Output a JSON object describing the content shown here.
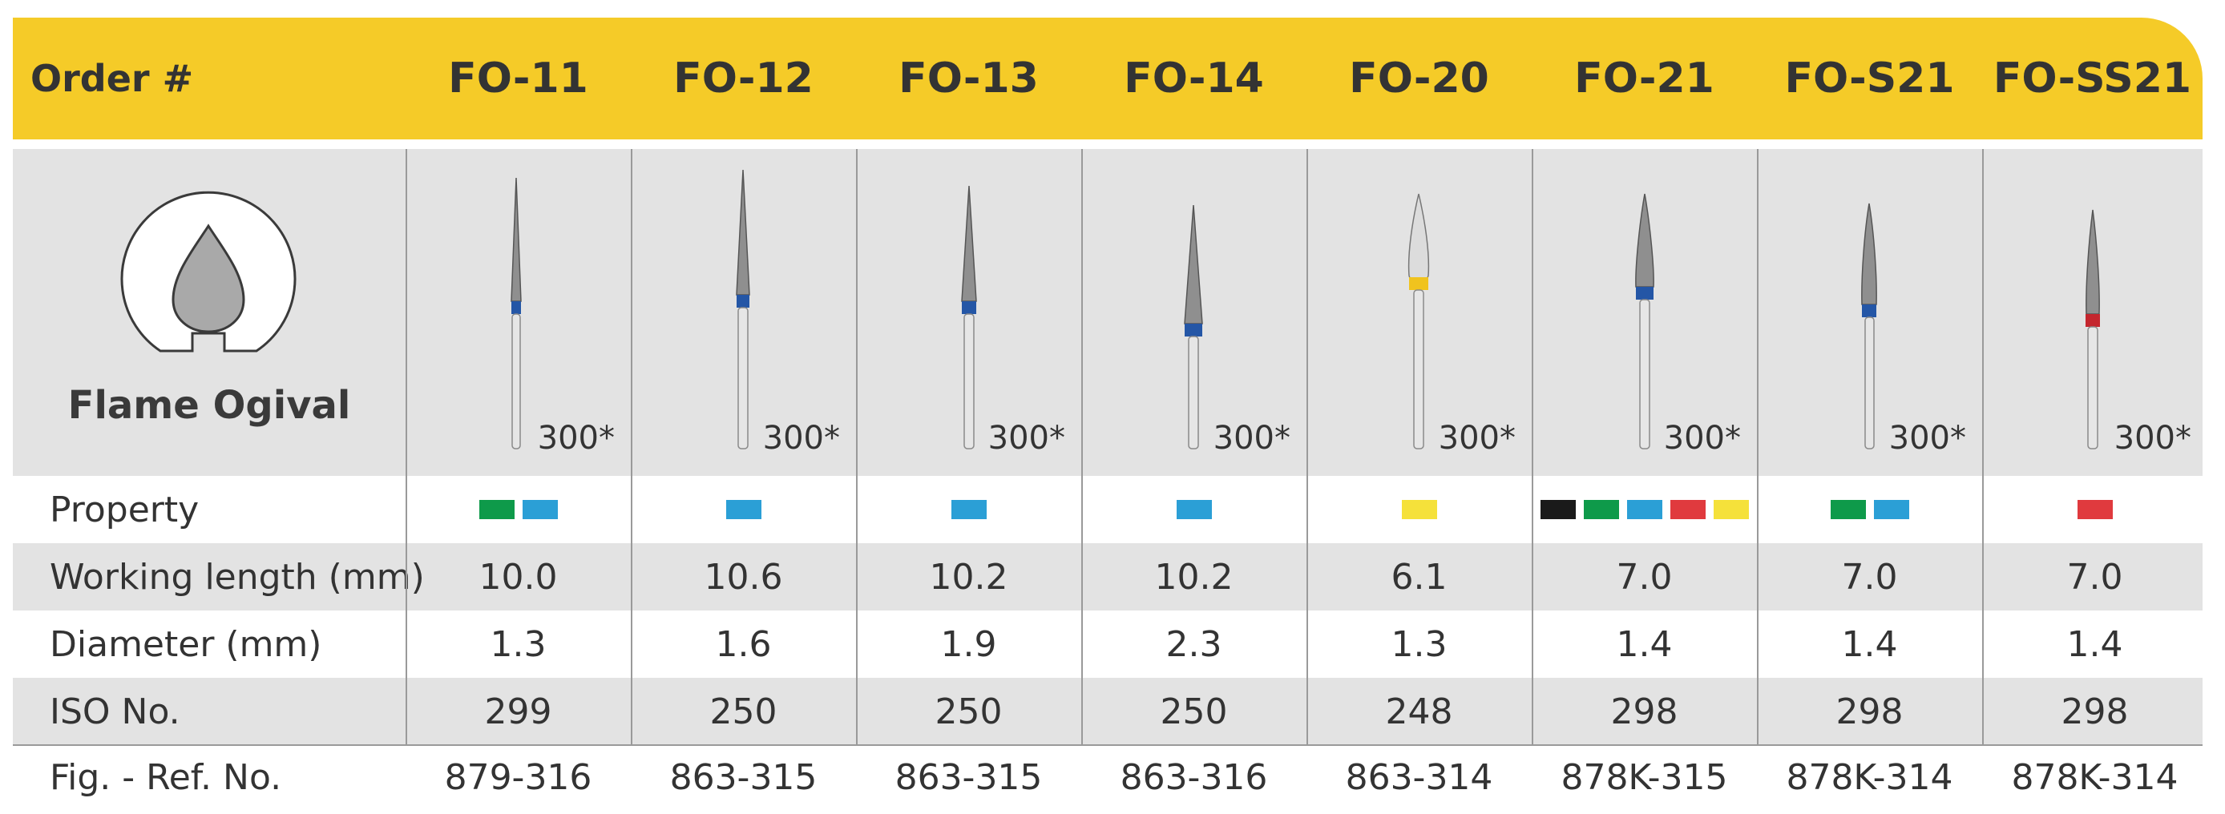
{
  "header": {
    "order_label": "Order #",
    "codes": [
      "FO-11",
      "FO-12",
      "FO-13",
      "FO-14",
      "FO-20",
      "FO-21",
      "FO-S21",
      "FO-SS21"
    ]
  },
  "shape": {
    "name": "Flame Ogival",
    "icon": "flame-ogival-icon"
  },
  "burs": [
    {
      "band": "#2456a6",
      "count": "300*"
    },
    {
      "band": "#2456a6",
      "count": "300*"
    },
    {
      "band": "#2456a6",
      "count": "300*"
    },
    {
      "band": "#2456a6",
      "count": "300*"
    },
    {
      "band": "#f0c31e",
      "count": "300*"
    },
    {
      "band": "#2456a6",
      "count": "300*"
    },
    {
      "band": "#2456a6",
      "count": "300*"
    },
    {
      "band": "#c4262e",
      "count": "300*"
    }
  ],
  "property": {
    "label": "Property",
    "colors": {
      "black": "#1a1a1a",
      "green": "#0e9a4a",
      "blue": "#2b9fd6",
      "red": "#e03a3e",
      "yellow": "#f5e13a"
    },
    "swatches": [
      [
        "green",
        "blue"
      ],
      [
        "blue"
      ],
      [
        "blue"
      ],
      [
        "blue"
      ],
      [
        "yellow"
      ],
      [
        "black",
        "green",
        "blue",
        "red",
        "yellow"
      ],
      [
        "green",
        "blue"
      ],
      [
        "red"
      ]
    ]
  },
  "rows": [
    {
      "label": "Working length (mm)",
      "values": [
        "10.0",
        "10.6",
        "10.2",
        "10.2",
        "6.1",
        "7.0",
        "7.0",
        "7.0"
      ]
    },
    {
      "label": "Diameter (mm)",
      "values": [
        "1.3",
        "1.6",
        "1.9",
        "2.3",
        "1.3",
        "1.4",
        "1.4",
        "1.4"
      ]
    },
    {
      "label": "ISO No.",
      "values": [
        "299",
        "250",
        "250",
        "250",
        "248",
        "298",
        "298",
        "298"
      ]
    },
    {
      "label": "Fig. - Ref. No.",
      "values": [
        "879-316",
        "863-315",
        "863-315",
        "863-316",
        "863-314",
        "878K-315",
        "878K-314",
        "878K-314"
      ]
    }
  ],
  "accent": "#f5cb28"
}
